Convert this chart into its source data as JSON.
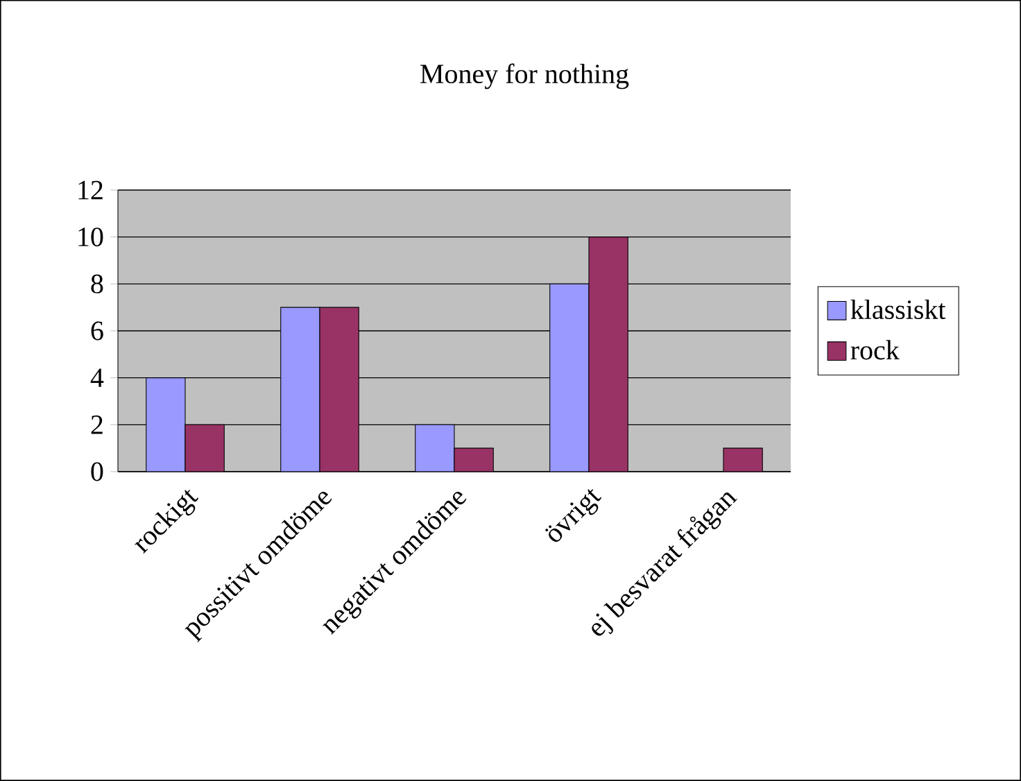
{
  "chart_data": {
    "type": "bar",
    "title": "Money for nothing",
    "categories": [
      "rockigt",
      "possitivt omdöme",
      "negativt omdöme",
      "övrigt",
      "ej besvarat frågan"
    ],
    "series": [
      {
        "name": "klassiskt",
        "color": "#9999ff",
        "values": [
          4,
          7,
          2,
          8,
          null
        ]
      },
      {
        "name": "rock",
        "color": "#993366",
        "values": [
          2,
          7,
          1,
          10,
          1
        ]
      }
    ],
    "ylim": [
      0,
      12
    ],
    "yticks": [
      0,
      2,
      4,
      6,
      8,
      10,
      12
    ],
    "grid": "y",
    "legend": "right"
  }
}
